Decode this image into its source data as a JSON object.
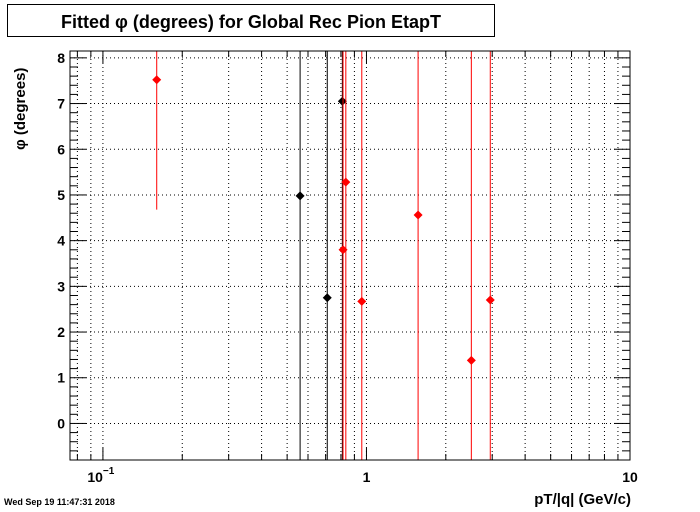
{
  "chart_data": {
    "type": "scatter",
    "title": "Fitted φ (degrees) for Global Rec Pion EtapT",
    "xlabel": "pT/|q| (GeV/c)",
    "ylabel": "φ (degrees)",
    "xscale": "log",
    "xlim": [
      0.075,
      10
    ],
    "ylim": [
      -0.8,
      8.15
    ],
    "grid": true,
    "x_ticks": [
      {
        "v": 0.1,
        "b": "10",
        "e": "−1"
      },
      {
        "v": 1,
        "b": "1",
        "e": ""
      },
      {
        "v": 10,
        "b": "10",
        "e": ""
      }
    ],
    "y_ticks": [
      0,
      1,
      2,
      3,
      4,
      5,
      6,
      7,
      8
    ],
    "series": [
      {
        "color": "#000000",
        "points": [
          {
            "x": 0.56,
            "y": 4.98,
            "lo": -0.8,
            "hi": 8.15
          },
          {
            "x": 0.71,
            "y": 2.75,
            "lo": -0.8,
            "hi": 8.15
          },
          {
            "x": 0.81,
            "y": 7.05,
            "lo": -0.8,
            "hi": 8.15
          }
        ]
      },
      {
        "color": "#ff0000",
        "points": [
          {
            "x": 0.16,
            "y": 7.52,
            "lo": 4.68,
            "hi": 8.15
          },
          {
            "x": 0.815,
            "y": 3.8,
            "lo": -0.8,
            "hi": 8.15
          },
          {
            "x": 0.835,
            "y": 5.28,
            "lo": -0.8,
            "hi": 8.15
          },
          {
            "x": 0.96,
            "y": 2.67,
            "lo": -0.8,
            "hi": 8.15
          },
          {
            "x": 1.57,
            "y": 4.56,
            "lo": -0.8,
            "hi": 8.15
          },
          {
            "x": 2.5,
            "y": 1.38,
            "lo": -0.8,
            "hi": 8.15
          },
          {
            "x": 2.95,
            "y": 2.7,
            "lo": -0.8,
            "hi": 8.15
          }
        ]
      }
    ]
  },
  "footer": {
    "timestamp": "Wed Sep 19 11:47:31 2018"
  }
}
